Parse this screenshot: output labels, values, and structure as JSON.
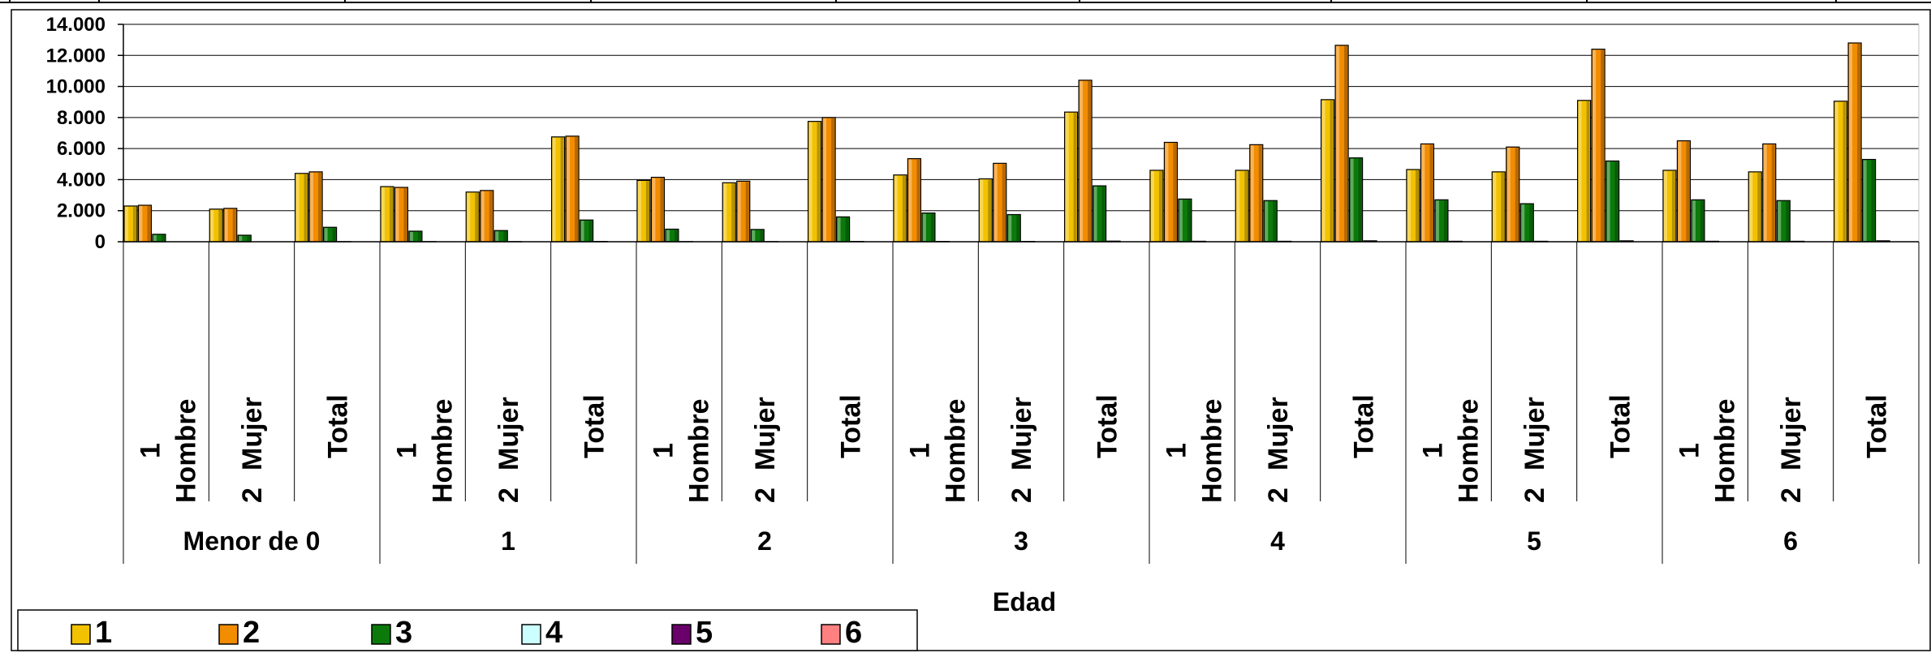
{
  "chart_data": {
    "type": "bar",
    "xlabel": "Edad",
    "ylabel": "",
    "ylim": [
      0,
      14000
    ],
    "yticks": [
      "0",
      "2.000",
      "4.000",
      "6.000",
      "8.000",
      "10.000",
      "12.000",
      "14.000"
    ],
    "ytick_values": [
      0,
      2000,
      4000,
      6000,
      8000,
      10000,
      12000,
      14000
    ],
    "grid": true,
    "legend_position": "bottom-left",
    "groups": [
      "Menor de 0",
      "1",
      "2",
      "3",
      "4",
      "5",
      "6"
    ],
    "subcategories": [
      {
        "line1": "1",
        "line2": "Hombre"
      },
      {
        "line1": "2",
        "line2": "Mujer"
      },
      {
        "line1": "Total",
        "line2": ""
      }
    ],
    "series": [
      {
        "name": "1",
        "color": "#F2C200",
        "values": [
          2300,
          2100,
          4400,
          3550,
          3200,
          6750,
          3950,
          3800,
          7750,
          4300,
          4050,
          8350,
          4600,
          4600,
          9150,
          4650,
          4500,
          9100,
          4600,
          4500,
          9050
        ]
      },
      {
        "name": "2",
        "color": "#F28C00",
        "values": [
          2350,
          2150,
          4500,
          3500,
          3300,
          6800,
          4150,
          3900,
          8000,
          5350,
          5050,
          10400,
          6400,
          6250,
          12650,
          6300,
          6100,
          12400,
          6500,
          6300,
          12800
        ]
      },
      {
        "name": "3",
        "color": "#0B7A0B",
        "values": [
          480,
          420,
          930,
          680,
          720,
          1400,
          810,
          790,
          1600,
          1850,
          1750,
          3600,
          2750,
          2650,
          5400,
          2700,
          2450,
          5200,
          2700,
          2650,
          5300
        ]
      },
      {
        "name": "4",
        "color": "#CCFFFF",
        "values": [
          0,
          0,
          10,
          10,
          10,
          20,
          10,
          10,
          20,
          20,
          20,
          40,
          30,
          30,
          60,
          30,
          30,
          60,
          30,
          30,
          60
        ]
      },
      {
        "name": "5",
        "color": "#6A006A",
        "values": [
          0,
          0,
          0,
          0,
          0,
          0,
          0,
          0,
          0,
          0,
          0,
          0,
          0,
          0,
          0,
          0,
          0,
          0,
          0,
          0,
          0
        ]
      },
      {
        "name": "6",
        "color": "#FF8080",
        "values": [
          0,
          0,
          0,
          0,
          0,
          0,
          0,
          0,
          0,
          0,
          0,
          0,
          0,
          0,
          0,
          0,
          0,
          0,
          0,
          0,
          0
        ]
      }
    ]
  }
}
